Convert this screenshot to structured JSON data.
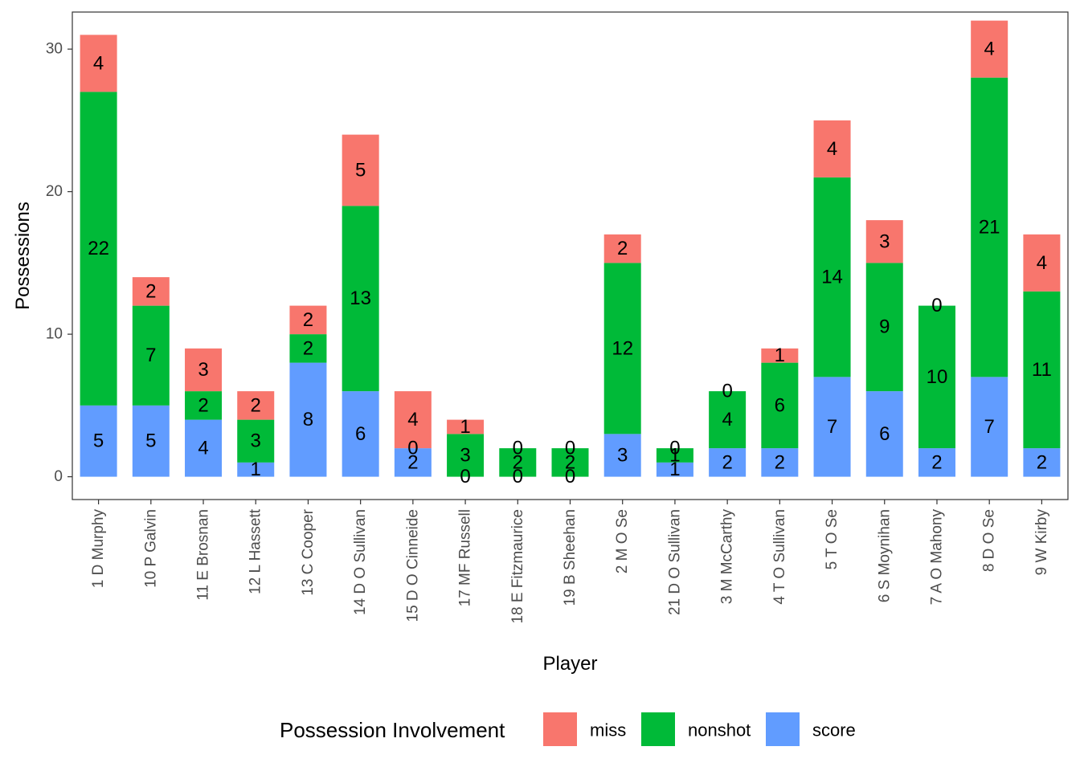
{
  "chart_data": {
    "type": "bar",
    "stacked": true,
    "xlabel": "Player",
    "ylabel": "Possessions",
    "ylim": [
      -1.6,
      32.6
    ],
    "yticks": [
      0,
      10,
      20,
      30
    ],
    "categories": [
      "1 D Murphy",
      "10 P Galvin",
      "11 E Brosnan",
      "12 L Hassett",
      "13 C Cooper",
      "14 D O Sullivan",
      "15 D O Cinneide",
      "17 MF Russell",
      "18 E Fitzmaurice",
      "19 B Sheehan",
      "2 M O Se",
      "21 D O Sullivan",
      "3 M McCarthy",
      "4 T O Sullivan",
      "5 T O Se",
      "6 S Moynihan",
      "7 A O Mahony",
      "8 D O Se",
      "9 W Kirby"
    ],
    "series": [
      {
        "name": "score",
        "color": "#619CFF",
        "values": [
          5,
          5,
          4,
          1,
          8,
          6,
          2,
          0,
          0,
          0,
          3,
          1,
          2,
          2,
          7,
          6,
          2,
          7,
          2
        ]
      },
      {
        "name": "nonshot",
        "color": "#00BA38",
        "values": [
          22,
          7,
          2,
          3,
          2,
          13,
          0,
          3,
          2,
          2,
          12,
          1,
          4,
          6,
          14,
          9,
          10,
          21,
          11
        ]
      },
      {
        "name": "miss",
        "color": "#F8766D",
        "values": [
          4,
          2,
          3,
          2,
          2,
          5,
          4,
          1,
          0,
          0,
          2,
          0,
          0,
          1,
          4,
          3,
          0,
          4,
          4
        ]
      }
    ],
    "legend": {
      "title": "Possession Involvement",
      "position": "bottom",
      "order": [
        "miss",
        "nonshot",
        "score"
      ]
    },
    "grid": false
  }
}
